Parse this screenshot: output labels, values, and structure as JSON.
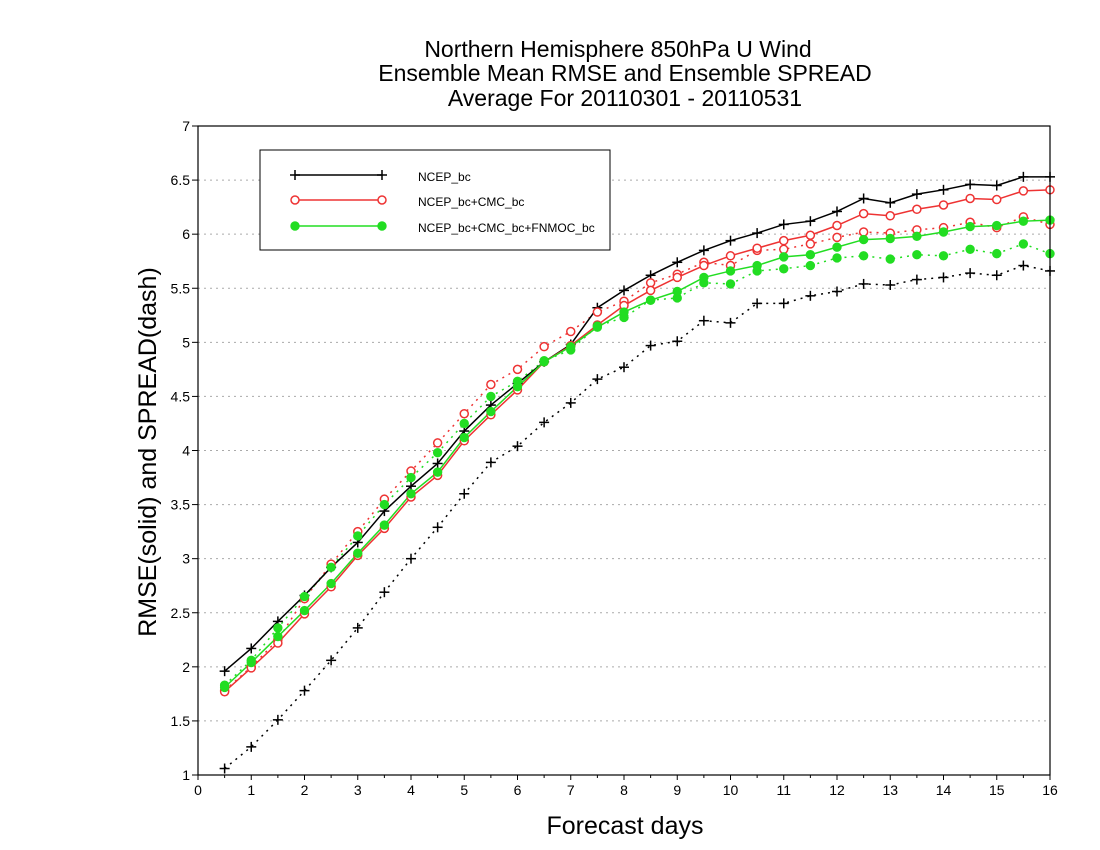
{
  "chart_data": {
    "type": "line",
    "title_lines": [
      "Northern Hemisphere 850hPa U Wind",
      "Ensemble Mean RMSE and Ensemble SPREAD",
      "Average For 20110301 - 20110531"
    ],
    "xlabel": "Forecast days",
    "ylabel": "RMSE(solid) and SPREAD(dash)",
    "xlim": [
      0,
      16
    ],
    "ylim": [
      1,
      7
    ],
    "x_ticks": [
      "0",
      "1",
      "2",
      "3",
      "4",
      "5",
      "6",
      "7",
      "8",
      "9",
      "10",
      "11",
      "12",
      "13",
      "14",
      "15",
      "16"
    ],
    "y_ticks": [
      "1",
      "1.5",
      "2",
      "2.5",
      "3",
      "3.5",
      "4",
      "4.5",
      "5",
      "5.5",
      "6",
      "6.5",
      "7"
    ],
    "grid": "horizontal dotted",
    "legend_position": "top-left",
    "x": [
      0.5,
      1,
      1.5,
      2,
      2.5,
      3,
      3.5,
      4,
      4.5,
      5,
      5.5,
      6,
      6.5,
      7,
      7.5,
      8,
      8.5,
      9,
      9.5,
      10,
      10.5,
      11,
      11.5,
      12,
      12.5,
      13,
      13.5,
      14,
      14.5,
      15,
      15.5,
      16
    ],
    "series": [
      {
        "name": "NCEP_bc",
        "color": "#000000",
        "marker": "plus",
        "rmse": [
          1.96,
          2.17,
          2.42,
          2.66,
          2.92,
          3.15,
          3.44,
          3.67,
          3.88,
          4.18,
          4.42,
          4.62,
          4.82,
          4.98,
          5.32,
          5.48,
          5.62,
          5.74,
          5.85,
          5.94,
          6.01,
          6.09,
          6.12,
          6.21,
          6.33,
          6.29,
          6.37,
          6.41,
          6.46,
          6.45,
          6.53,
          6.53
        ],
        "spread": [
          1.06,
          1.26,
          1.51,
          1.78,
          2.06,
          2.36,
          2.69,
          3.0,
          3.29,
          3.6,
          3.89,
          4.04,
          4.26,
          4.44,
          4.66,
          4.77,
          4.97,
          5.01,
          5.2,
          5.18,
          5.36,
          5.36,
          5.43,
          5.47,
          5.54,
          5.53,
          5.58,
          5.6,
          5.64,
          5.62,
          5.71,
          5.66
        ]
      },
      {
        "name": "NCEP_bc+CMC_bc",
        "color": "#ee3333",
        "marker": "open-circle",
        "rmse": [
          1.77,
          1.99,
          2.22,
          2.49,
          2.74,
          3.03,
          3.28,
          3.57,
          3.77,
          4.09,
          4.33,
          4.56,
          4.82,
          4.97,
          5.16,
          5.34,
          5.48,
          5.6,
          5.71,
          5.8,
          5.87,
          5.94,
          5.99,
          6.08,
          6.19,
          6.17,
          6.23,
          6.27,
          6.33,
          6.32,
          6.4,
          6.41
        ],
        "spread": [
          1.78,
          2.0,
          2.25,
          2.63,
          2.95,
          3.25,
          3.55,
          3.81,
          4.07,
          4.34,
          4.61,
          4.75,
          4.96,
          5.1,
          5.28,
          5.38,
          5.55,
          5.63,
          5.74,
          5.71,
          5.85,
          5.86,
          5.91,
          5.97,
          6.02,
          6.01,
          6.04,
          6.06,
          6.11,
          6.06,
          6.16,
          6.09
        ]
      },
      {
        "name": "NCEP_bc+CMC_bc+FNMOC_bc",
        "color": "#22dd22",
        "marker": "filled-circle",
        "rmse": [
          1.81,
          2.04,
          2.28,
          2.52,
          2.77,
          3.05,
          3.31,
          3.6,
          3.8,
          4.12,
          4.36,
          4.59,
          4.82,
          4.96,
          5.14,
          5.28,
          5.39,
          5.47,
          5.6,
          5.66,
          5.71,
          5.79,
          5.81,
          5.88,
          5.95,
          5.96,
          5.98,
          6.02,
          6.07,
          6.08,
          6.12,
          6.13
        ],
        "spread": [
          1.83,
          2.06,
          2.36,
          2.65,
          2.92,
          3.21,
          3.5,
          3.75,
          3.98,
          4.25,
          4.5,
          4.64,
          4.83,
          4.93,
          5.15,
          5.23,
          5.39,
          5.41,
          5.55,
          5.54,
          5.66,
          5.68,
          5.71,
          5.78,
          5.8,
          5.77,
          5.81,
          5.8,
          5.86,
          5.82,
          5.91,
          5.82
        ]
      }
    ]
  }
}
